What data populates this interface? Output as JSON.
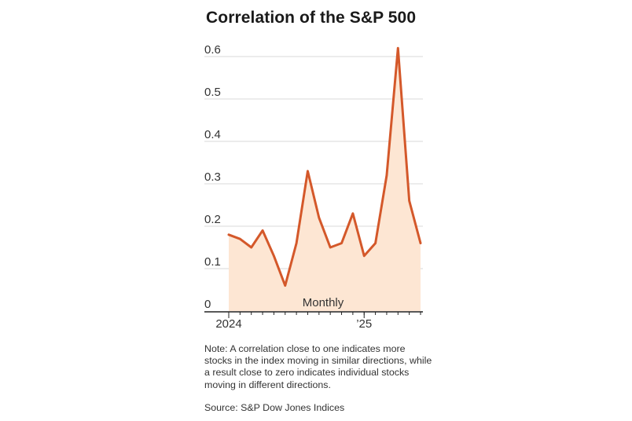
{
  "title": "Correlation of the S&P 500",
  "note": "Note: A correlation close to one indicates more stocks in the index moving in similar directions, while a result close to zero indicates individual stocks moving in different directions.",
  "source": "Source: S&P Dow Jones Indices",
  "colors": {
    "line": "#d4582a",
    "fill": "#fde6d3",
    "grid": "#d9d9d9",
    "axis": "#222222",
    "text": "#333333"
  },
  "chart_data": {
    "type": "area",
    "title": "Correlation of the S&P 500",
    "frequency_label": "Monthly",
    "x_tick_labels": [
      {
        "label": "2024",
        "index": 0
      },
      {
        "label": "’25",
        "index": 12
      }
    ],
    "x": [
      "2024-01",
      "2024-02",
      "2024-03",
      "2024-04",
      "2024-05",
      "2024-06",
      "2024-07",
      "2024-08",
      "2024-09",
      "2024-10",
      "2024-11",
      "2024-12",
      "2025-01",
      "2025-02",
      "2025-03",
      "2025-04",
      "2025-05",
      "2025-06"
    ],
    "values": [
      0.18,
      0.17,
      0.15,
      0.19,
      0.13,
      0.06,
      0.16,
      0.33,
      0.22,
      0.15,
      0.16,
      0.23,
      0.13,
      0.16,
      0.32,
      0.62,
      0.26,
      0.16
    ],
    "y_ticks": [
      0,
      0.1,
      0.2,
      0.3,
      0.4,
      0.5,
      0.6
    ],
    "y_tick_labels": [
      "0",
      "0.1",
      "0.2",
      "0.3",
      "0.4",
      "0.5",
      "0.6"
    ],
    "ylim": [
      0,
      0.62
    ],
    "xlabel": "",
    "ylabel": "",
    "grid": true
  }
}
